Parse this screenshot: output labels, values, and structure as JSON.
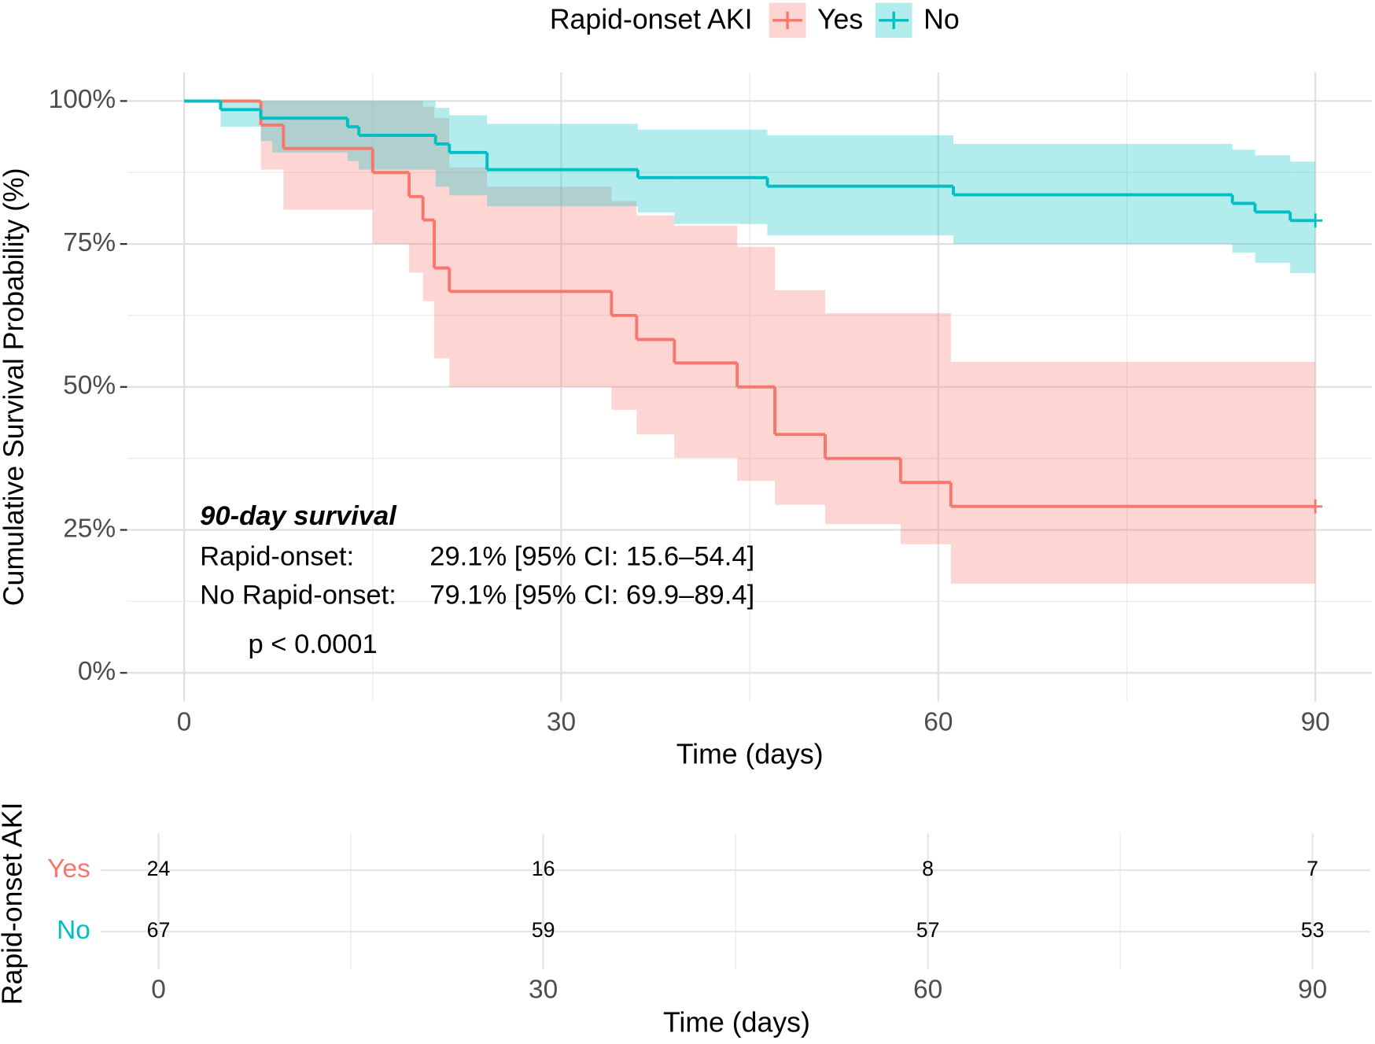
{
  "legend_title": "Rapid-onset AKI",
  "chart_data": [
    {
      "type": "km",
      "x_label": "Time (days)",
      "y_label": "Cumulative Survival Probability (%)",
      "xlim": [
        -4.5,
        94.5
      ],
      "ylim": [
        -5,
        105
      ],
      "xticks": [
        0,
        30,
        60,
        90
      ],
      "yticks": [
        {
          "value": 0,
          "label": "0%"
        },
        {
          "value": 25,
          "label": "25%"
        },
        {
          "value": 50,
          "label": "50%"
        },
        {
          "value": 75,
          "label": "75%"
        },
        {
          "value": 100,
          "label": "100%"
        }
      ],
      "grid": true,
      "series": [
        {
          "name": "Yes",
          "color": "#F8766D",
          "x": [
            0,
            6.1,
            7.9,
            15,
            17.9,
            19,
            19.9,
            21.1,
            24.1,
            34,
            36,
            39,
            44,
            47,
            51,
            57,
            61,
            90
          ],
          "values": [
            100,
            95.8,
            91.7,
            87.5,
            83.3,
            79.2,
            70.8,
            66.7,
            66.7,
            62.5,
            58.3,
            54.2,
            50,
            41.7,
            37.5,
            33.3,
            29.1,
            29.1
          ],
          "lower": [
            100,
            88,
            81,
            75,
            70,
            65,
            55,
            50,
            50,
            46,
            41.7,
            37.6,
            33.6,
            29.4,
            26,
            22.5,
            15.6,
            15.6
          ],
          "upper": [
            100,
            100,
            100,
            100,
            100,
            99,
            97,
            88.4,
            85,
            82.5,
            80,
            78.2,
            74.5,
            66.9,
            62.9,
            62.9,
            54.4,
            54.4
          ]
        },
        {
          "name": "No",
          "color": "#00BFC4",
          "x": [
            0,
            2.9,
            6.1,
            7,
            13,
            13.9,
            20,
            21.1,
            24.1,
            36.1,
            39,
            46.4,
            61.2,
            83.4,
            85.2,
            88,
            90
          ],
          "values": [
            100,
            98.5,
            97.0,
            97.0,
            95.5,
            94.0,
            92.5,
            91.0,
            88.0,
            86.6,
            86.6,
            85.1,
            83.6,
            82.1,
            80.6,
            79.1,
            79.1
          ],
          "lower": [
            100,
            95.5,
            93,
            91,
            89.5,
            88,
            85,
            83.5,
            81.6,
            80.5,
            78.5,
            76.5,
            75,
            73.5,
            71.7,
            69.9,
            69.9
          ],
          "upper": [
            100,
            100,
            100,
            100,
            100,
            100,
            98.8,
            97.5,
            96,
            95,
            95,
            94,
            92.5,
            91.5,
            90.5,
            89.4,
            89.4
          ]
        }
      ],
      "annotation": {
        "title": "90-day survival",
        "rows": [
          [
            "Rapid-onset:",
            "29.1% [95% CI: 15.6–54.4]"
          ],
          [
            "No Rapid-onset:",
            "79.1% [95% CI: 69.9–89.4]"
          ]
        ],
        "p_value": "p < 0.0001"
      }
    },
    {
      "type": "risk-table",
      "x_label": "Time (days)",
      "y_label": "Rapid-onset AKI",
      "xlim": [
        -4.5,
        94.5
      ],
      "xticks": [
        0,
        30,
        60,
        90
      ],
      "series": [
        {
          "name": "Yes",
          "color": "#F8766D",
          "values": [
            24,
            16,
            8,
            7
          ]
        },
        {
          "name": "No",
          "color": "#00BFC4",
          "values": [
            67,
            59,
            57,
            53
          ]
        }
      ]
    }
  ]
}
